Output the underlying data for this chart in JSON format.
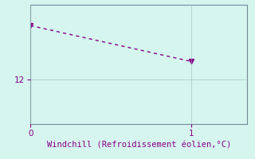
{
  "x_data": [
    0,
    1
  ],
  "y_data": [
    13.8,
    12.6
  ],
  "line_color": "#880088",
  "background_color": "#d5f5ee",
  "grid_color": "#99bbbb",
  "xlabel": "Windchill (Refroidissement éolien,°C)",
  "xlabel_color": "#880088",
  "tick_color": "#880088",
  "spine_color": "#778899",
  "xlim": [
    0,
    1.35
  ],
  "ylim": [
    10.5,
    14.5
  ],
  "yticks": [
    12
  ],
  "xticks": [
    0,
    1
  ],
  "xlabel_fontsize": 7.5,
  "tick_fontsize": 7.5,
  "line_width": 1.0,
  "marker": "v",
  "marker_size": 4
}
